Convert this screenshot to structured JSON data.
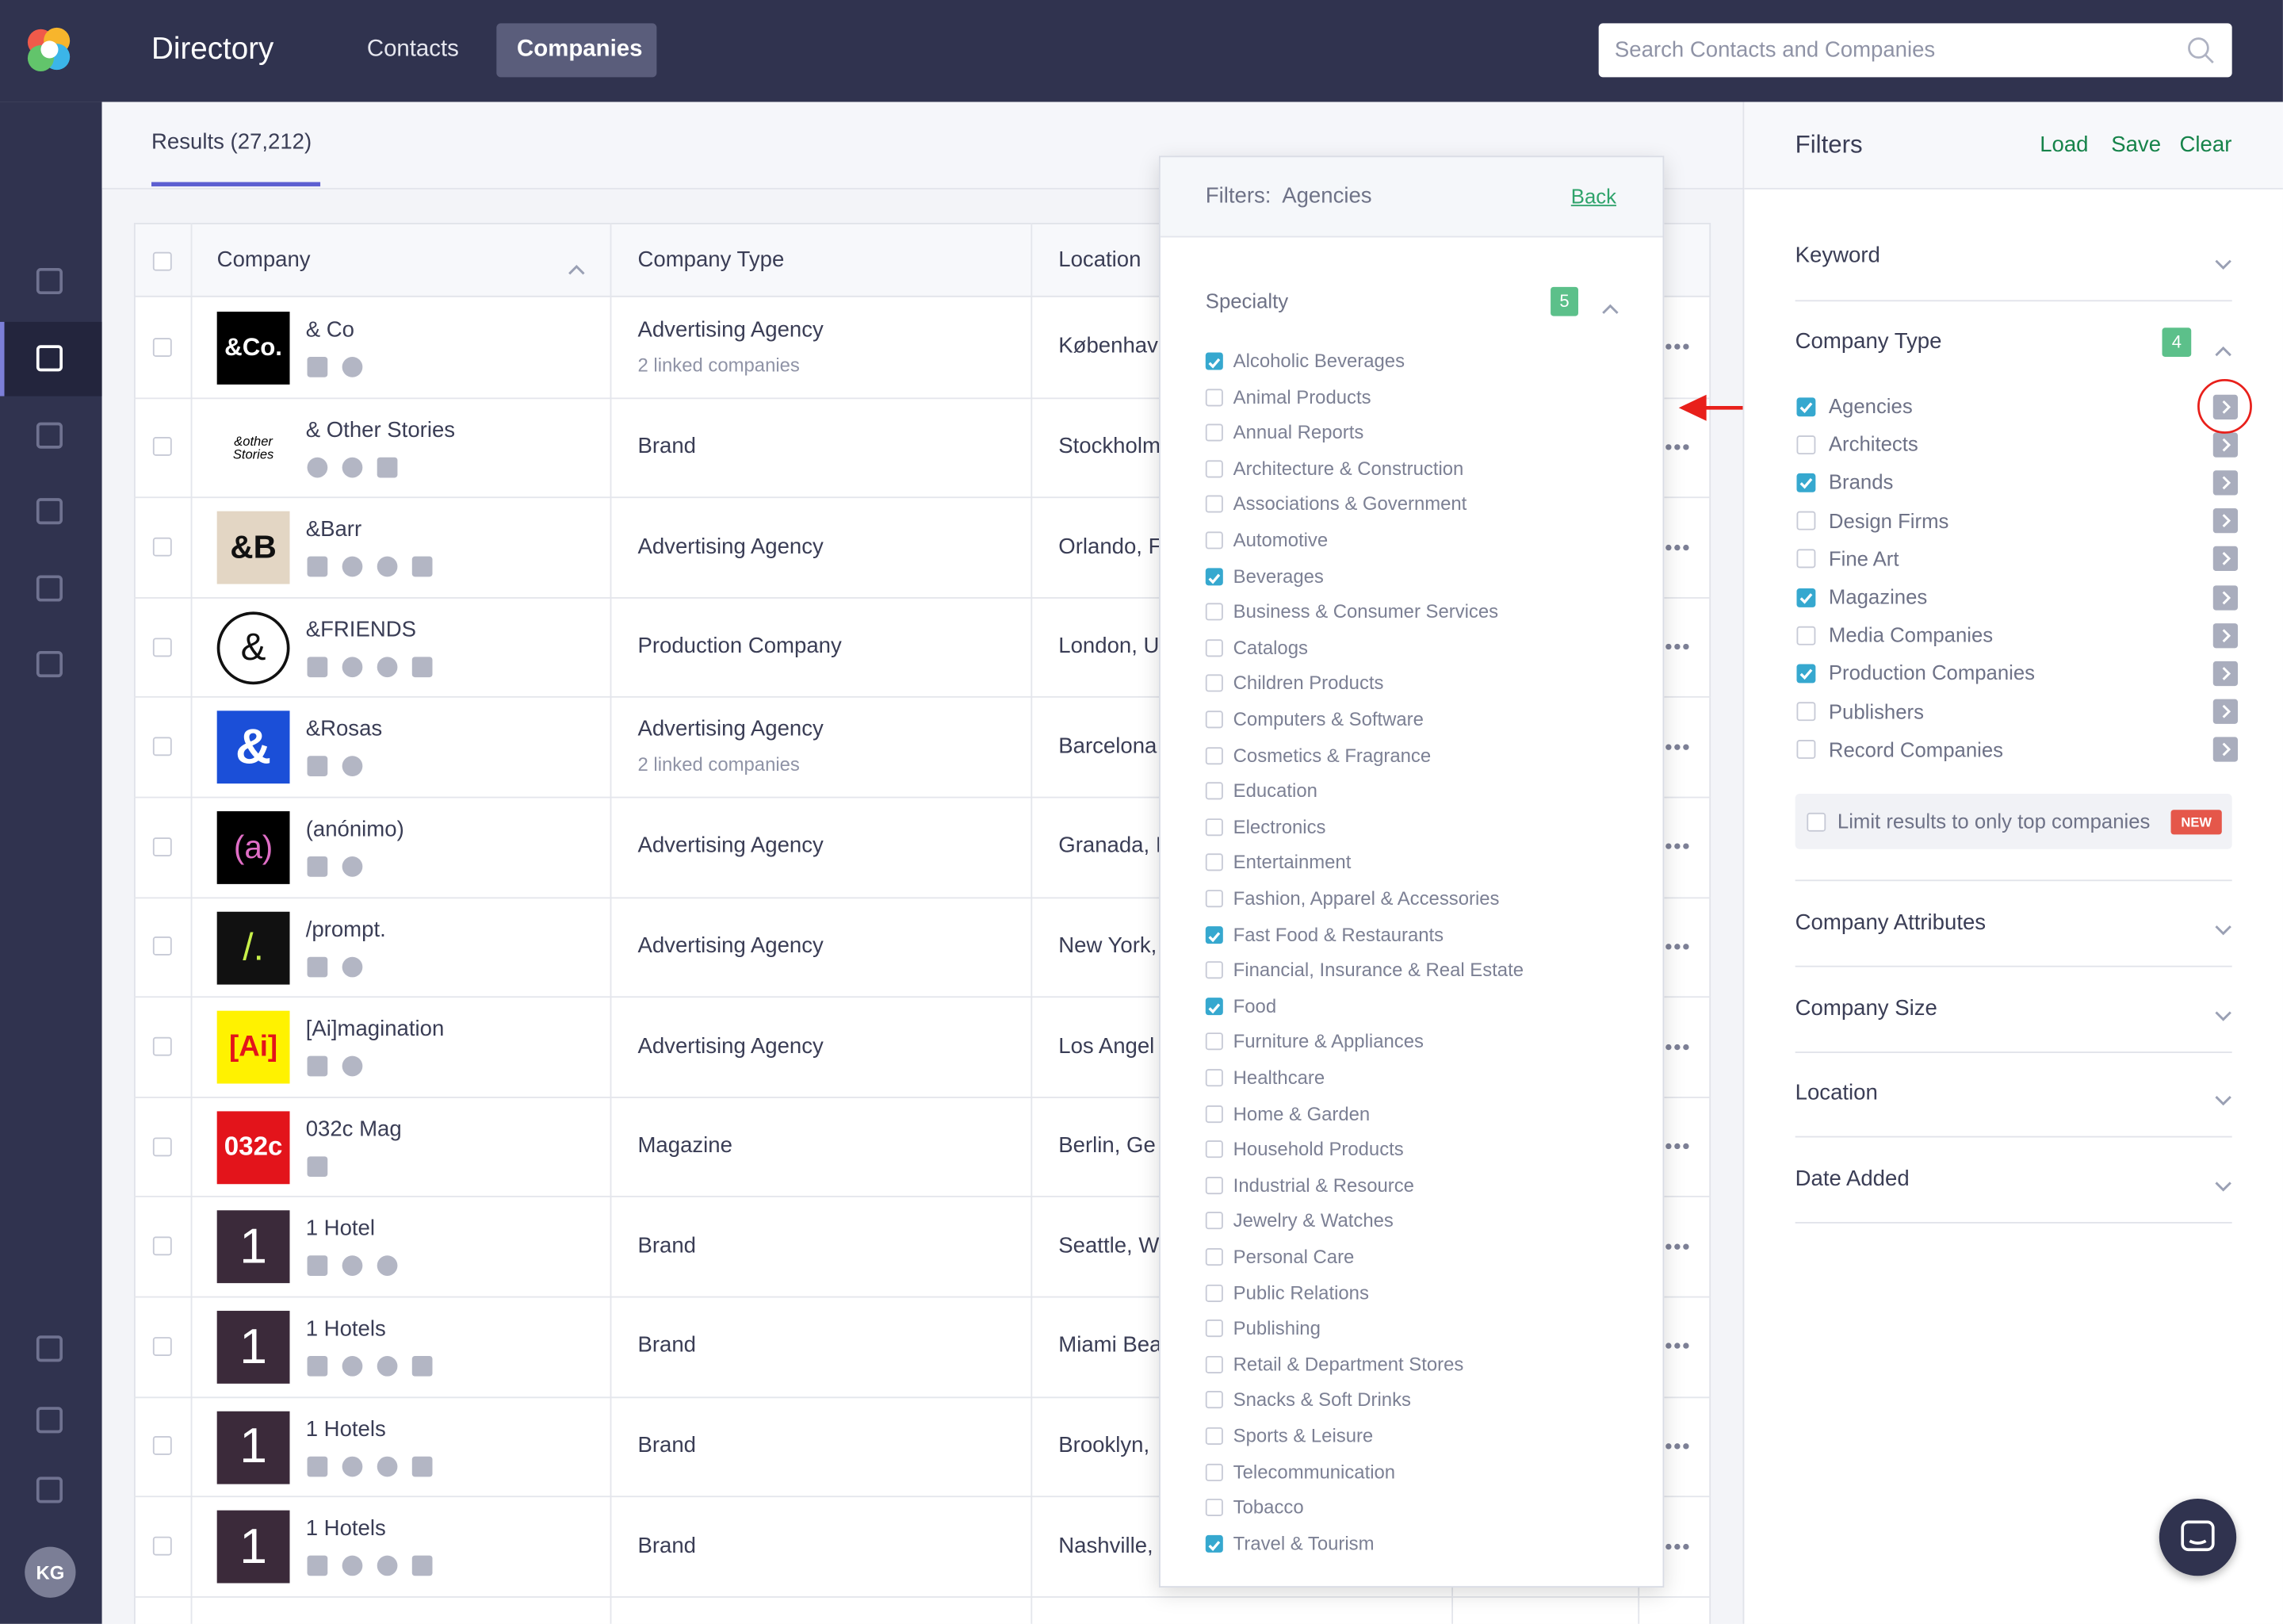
{
  "header": {
    "title": "Directory",
    "tabs": [
      "Contacts",
      "Companies"
    ],
    "search_placeholder": "Search Contacts and Companies"
  },
  "sidebar": {
    "avatar": "KG"
  },
  "results_tab": "Results (27,212)",
  "table": {
    "columns": [
      "Company",
      "Company Type",
      "Location"
    ],
    "rows": [
      {
        "logo": "&Co.",
        "name": "& Co",
        "type": "Advertising Agency",
        "linked": "2 linked companies",
        "location": "København"
      },
      {
        "logo": "&other Stories",
        "name": "& Other Stories",
        "type": "Brand",
        "location": "Stockholm"
      },
      {
        "logo": "&B",
        "name": "&Barr",
        "type": "Advertising Agency",
        "location": "Orlando, F"
      },
      {
        "logo": "&",
        "name": "&FRIENDS",
        "type": "Production Company",
        "location": "London, U"
      },
      {
        "logo": "&",
        "name": "&Rosas",
        "type": "Advertising Agency",
        "linked": "2 linked companies",
        "location": "Barcelona"
      },
      {
        "logo": "(a)",
        "name": "(anónimo)",
        "type": "Advertising Agency",
        "location": "Granada, I"
      },
      {
        "logo": "/.",
        "name": "/prompt.",
        "type": "Advertising Agency",
        "location": "New York,"
      },
      {
        "logo": "[Ai]",
        "name": "[Ai]magination",
        "type": "Advertising Agency",
        "location": "Los Angel"
      },
      {
        "logo": "032c",
        "name": "032c Mag",
        "type": "Magazine",
        "location": "Berlin, Ge"
      },
      {
        "logo": "1",
        "name": "1 Hotel",
        "type": "Brand",
        "location": "Seattle, W"
      },
      {
        "logo": "1",
        "name": "1 Hotels",
        "type": "Brand",
        "location": "Miami Bea"
      },
      {
        "logo": "1",
        "name": "1 Hotels",
        "type": "Brand",
        "location": "Brooklyn,"
      },
      {
        "logo": "1",
        "name": "1 Hotels",
        "type": "Brand",
        "location": "Nashville,"
      }
    ]
  },
  "popup": {
    "title": "Filters:  Agencies",
    "back": "Back",
    "section": "Specialty",
    "count": 5,
    "items": [
      {
        "label": "Alcoholic Beverages",
        "checked": true
      },
      {
        "label": "Animal Products",
        "checked": false
      },
      {
        "label": "Annual Reports",
        "checked": false
      },
      {
        "label": "Architecture & Construction",
        "checked": false
      },
      {
        "label": "Associations & Government",
        "checked": false
      },
      {
        "label": "Automotive",
        "checked": false
      },
      {
        "label": "Beverages",
        "checked": true
      },
      {
        "label": "Business & Consumer Services",
        "checked": false
      },
      {
        "label": "Catalogs",
        "checked": false
      },
      {
        "label": "Children Products",
        "checked": false
      },
      {
        "label": "Computers & Software",
        "checked": false
      },
      {
        "label": "Cosmetics & Fragrance",
        "checked": false
      },
      {
        "label": "Education",
        "checked": false
      },
      {
        "label": "Electronics",
        "checked": false
      },
      {
        "label": "Entertainment",
        "checked": false
      },
      {
        "label": "Fashion, Apparel & Accessories",
        "checked": false
      },
      {
        "label": "Fast Food & Restaurants",
        "checked": true
      },
      {
        "label": "Financial, Insurance & Real Estate",
        "checked": false
      },
      {
        "label": "Food",
        "checked": true
      },
      {
        "label": "Furniture & Appliances",
        "checked": false
      },
      {
        "label": "Healthcare",
        "checked": false
      },
      {
        "label": "Home & Garden",
        "checked": false
      },
      {
        "label": "Household Products",
        "checked": false
      },
      {
        "label": "Industrial & Resource",
        "checked": false
      },
      {
        "label": "Jewelry & Watches",
        "checked": false
      },
      {
        "label": "Personal Care",
        "checked": false
      },
      {
        "label": "Public Relations",
        "checked": false
      },
      {
        "label": "Publishing",
        "checked": false
      },
      {
        "label": "Retail & Department Stores",
        "checked": false
      },
      {
        "label": "Snacks & Soft Drinks",
        "checked": false
      },
      {
        "label": "Sports & Leisure",
        "checked": false
      },
      {
        "label": "Telecommunication",
        "checked": false
      },
      {
        "label": "Tobacco",
        "checked": false
      },
      {
        "label": "Travel & Tourism",
        "checked": true
      }
    ]
  },
  "filters": {
    "title": "Filters",
    "actions": [
      "Load",
      "Save",
      "Clear"
    ],
    "keyword": "Keyword",
    "company_type": {
      "label": "Company Type",
      "count": 4,
      "options": [
        {
          "label": "Agencies",
          "checked": true
        },
        {
          "label": "Architects",
          "checked": false
        },
        {
          "label": "Brands",
          "checked": true
        },
        {
          "label": "Design Firms",
          "checked": false
        },
        {
          "label": "Fine Art",
          "checked": false
        },
        {
          "label": "Magazines",
          "checked": true
        },
        {
          "label": "Media Companies",
          "checked": false
        },
        {
          "label": "Production Companies",
          "checked": true
        },
        {
          "label": "Publishers",
          "checked": false
        },
        {
          "label": "Record Companies",
          "checked": false
        }
      ]
    },
    "limit": "Limit results to only top companies",
    "limit_badge": "NEW",
    "sections": [
      "Company Attributes",
      "Company Size",
      "Location",
      "Date Added"
    ]
  }
}
